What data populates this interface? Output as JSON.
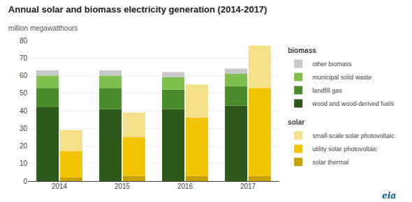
{
  "chart_data": {
    "type": "bar",
    "title": "Annual solar and biomass electricity generation (2014-2017)",
    "subtitle": "million megawatthours",
    "categories": [
      "2014",
      "2015",
      "2016",
      "2017"
    ],
    "stacked": true,
    "series": [
      {
        "name": "biomass",
        "series": [
          {
            "name": "wood and wood-derived fuels",
            "color": "#2d5a1b",
            "values": [
              42,
              41,
              41,
              43
            ]
          },
          {
            "name": "landfill gas",
            "color": "#4a8c2a",
            "values": [
              11,
              12,
              11,
              11
            ]
          },
          {
            "name": "municipal solid waste",
            "color": "#7fbf4d",
            "values": [
              7,
              7,
              7,
              7
            ]
          },
          {
            "name": "other biomass",
            "color": "#c8c8c8",
            "values": [
              3,
              3,
              3,
              3
            ]
          }
        ]
      },
      {
        "name": "solar",
        "series": [
          {
            "name": "solar thermal",
            "color": "#c8a000",
            "values": [
              2,
              3,
              3,
              3
            ]
          },
          {
            "name": "utility solar photovoltaic",
            "color": "#f5c400",
            "values": [
              15,
              22,
              33,
              50
            ]
          },
          {
            "name": "small-scale solar photovoltaic",
            "color": "#f5e08a",
            "values": [
              12,
              14,
              19,
              24
            ]
          }
        ]
      }
    ],
    "ylim": [
      0,
      80
    ],
    "yticks": [
      0,
      10,
      20,
      30,
      40,
      50,
      60,
      70,
      80
    ],
    "grid": true,
    "legend": "right",
    "annotations": [
      "eia"
    ]
  }
}
